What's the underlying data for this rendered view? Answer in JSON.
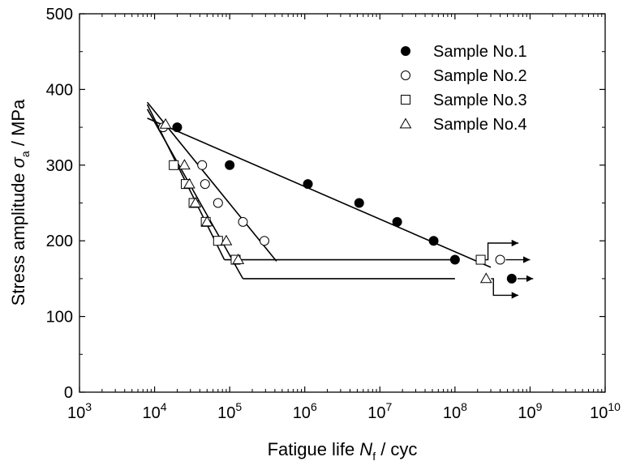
{
  "chart_data": {
    "type": "scatter",
    "x_scale": "log",
    "xlim": [
      1000,
      10000000000
    ],
    "ylim": [
      0,
      500
    ],
    "grid": false,
    "legend_position": "top-right",
    "xlabel": {
      "prefix": "Fatigue life ",
      "symbol": "N",
      "sub": "f",
      "suffix": " / cyc"
    },
    "ylabel": {
      "prefix": "Stress amplitude ",
      "symbol": "σ",
      "sub": "a",
      "suffix": " / MPa"
    },
    "x_ticks": [
      {
        "value": 1000,
        "base": "10",
        "exp": "3"
      },
      {
        "value": 10000,
        "base": "10",
        "exp": "4"
      },
      {
        "value": 100000,
        "base": "10",
        "exp": "5"
      },
      {
        "value": 1000000,
        "base": "10",
        "exp": "6"
      },
      {
        "value": 10000000,
        "base": "10",
        "exp": "7"
      },
      {
        "value": 100000000,
        "base": "10",
        "exp": "8"
      },
      {
        "value": 1000000000,
        "base": "10",
        "exp": "9"
      },
      {
        "value": 10000000000,
        "base": "10",
        "exp": "10"
      }
    ],
    "y_ticks": [
      0,
      100,
      200,
      300,
      400,
      500
    ],
    "series": [
      {
        "name": "Sample No.1",
        "marker": "filled-circle",
        "points": [
          [
            20000,
            350
          ],
          [
            100000,
            300
          ],
          [
            1100000,
            275
          ],
          [
            5300000,
            250
          ],
          [
            17000000,
            225
          ],
          [
            52000000,
            200
          ],
          [
            100000000,
            175
          ]
        ],
        "runouts": [
          [
            570000000,
            150
          ]
        ],
        "fit_line": [
          [
            8000,
            362
          ],
          [
            300000000,
            165
          ]
        ]
      },
      {
        "name": "Sample No.2",
        "marker": "open-circle",
        "points": [
          [
            13000,
            350
          ],
          [
            43000,
            300
          ],
          [
            47000,
            275
          ],
          [
            70000,
            250
          ],
          [
            150000,
            225
          ],
          [
            290000,
            200
          ]
        ],
        "runouts": [
          [
            400000000,
            175
          ]
        ],
        "fit_line": [
          [
            8000,
            383
          ],
          [
            420000,
            173
          ]
        ]
      },
      {
        "name": "Sample No.3",
        "marker": "open-square",
        "points": [
          [
            18000,
            300
          ],
          [
            26000,
            275
          ],
          [
            33000,
            250
          ],
          [
            48000,
            225
          ],
          [
            70000,
            200
          ],
          [
            120000,
            175
          ]
        ],
        "runouts": [
          [
            220000000,
            175
          ]
        ],
        "fit_line": [
          [
            8000,
            380
          ],
          [
            85000,
            175
          ]
        ]
      },
      {
        "name": "Sample No.4",
        "marker": "open-triangle",
        "points": [
          [
            14000,
            354
          ],
          [
            25000,
            300
          ],
          [
            29000,
            275
          ],
          [
            35000,
            250
          ],
          [
            50000,
            225
          ],
          [
            90000,
            200
          ],
          [
            130000,
            175
          ]
        ],
        "runouts": [
          [
            260000000,
            150
          ]
        ],
        "fit_line": [
          [
            8000,
            374
          ],
          [
            150000,
            150
          ]
        ]
      }
    ],
    "endurance_lines": [
      {
        "points": [
          [
            85000,
            175
          ],
          [
            100000000,
            175
          ]
        ]
      },
      {
        "points": [
          [
            150000,
            150
          ],
          [
            100000000,
            150
          ]
        ]
      }
    ],
    "runout_arrows": [
      {
        "from": [
          220000000,
          175
        ],
        "to": [
          700000000,
          197
        ]
      },
      {
        "from": [
          400000000,
          175
        ],
        "to": [
          1000000000,
          175
        ]
      },
      {
        "from": [
          260000000,
          150
        ],
        "to": [
          700000000,
          128
        ]
      },
      {
        "from": [
          570000000,
          150
        ],
        "to": [
          1100000000,
          150
        ]
      }
    ]
  }
}
